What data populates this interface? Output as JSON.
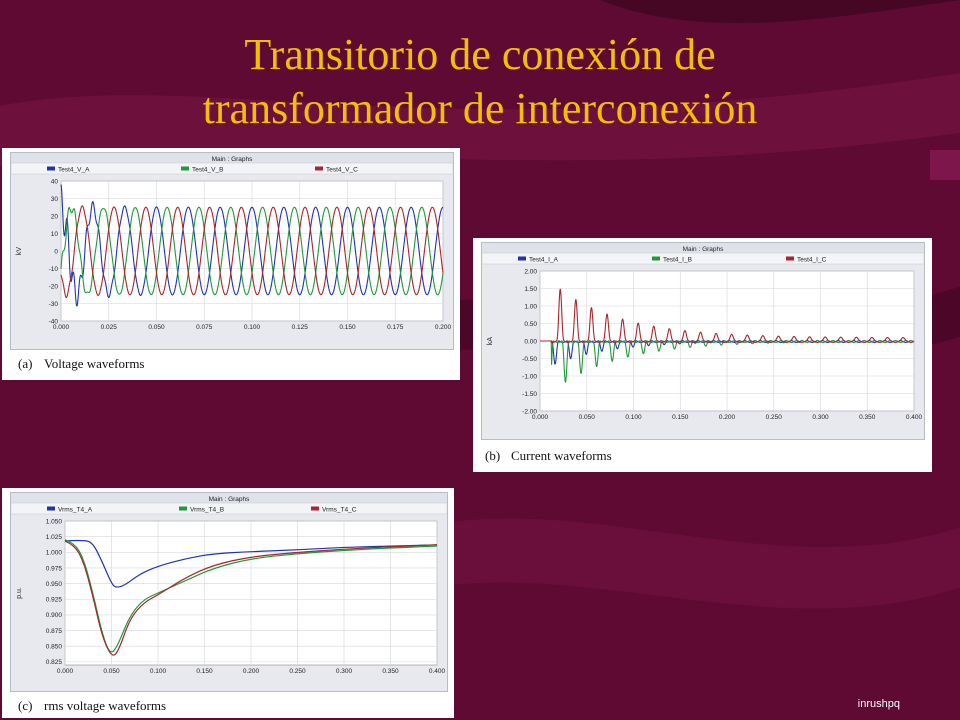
{
  "slide": {
    "title_line1": "Transitorio de conexión de",
    "title_line2": "transformador de interconexión",
    "footer": "inrushpq"
  },
  "colors": {
    "background": "#5e0a32",
    "title": "#f2c000",
    "phase_a": "#1f35b0",
    "phase_b": "#1f9a3a",
    "phase_c": "#a8262c"
  },
  "chart_data": [
    {
      "type": "line",
      "window_title": "Main : Graphs",
      "caption_letter": "(a)",
      "caption": "Voltage waveforms",
      "ylabel": "kV",
      "xlim": [
        0,
        0.2
      ],
      "ylim": [
        -40,
        40
      ],
      "x_ticks": [
        "0.000",
        "0.025",
        "0.050",
        "0.075",
        "0.100",
        "0.125",
        "0.150",
        "0.175",
        "0.200"
      ],
      "y_ticks": [
        "40",
        "30",
        "20",
        "10",
        "0",
        "-10",
        "-20",
        "-30",
        "-40"
      ],
      "frequency_hz": 60,
      "series": [
        {
          "name": "Test4_V_A",
          "color": "#1f35b0",
          "amplitude_kv": 25,
          "phase_deg": 90,
          "transient_peak_kv": 38
        },
        {
          "name": "Test4_V_B",
          "color": "#1f9a3a",
          "amplitude_kv": 25,
          "phase_deg": -30,
          "transient_peak_kv": 30
        },
        {
          "name": "Test4_V_C",
          "color": "#a8262c",
          "amplitude_kv": 25,
          "phase_deg": 210,
          "transient_peak_kv": 27
        }
      ]
    },
    {
      "type": "line",
      "window_title": "Main : Graphs",
      "caption_letter": "(b)",
      "caption": "Current waveforms",
      "ylabel": "kA",
      "xlim": [
        0,
        0.4
      ],
      "ylim": [
        -2,
        2
      ],
      "x_ticks": [
        "0.000",
        "0.050",
        "0.100",
        "0.150",
        "0.200",
        "0.250",
        "0.300",
        "0.350",
        "0.400"
      ],
      "y_ticks": [
        "2.00",
        "1.50",
        "1.00",
        "0.50",
        "0.00",
        "-0.50",
        "-1.00",
        "-1.50",
        "-2.00"
      ],
      "frequency_hz": 60,
      "series": [
        {
          "name": "Test4_I_A",
          "color": "#1f35b0",
          "initial_peak_ka": 0.7,
          "sign": -1,
          "decay_s": 0.06
        },
        {
          "name": "Test4_I_B",
          "color": "#1f9a3a",
          "initial_peak_ka": 1.45,
          "sign": -1,
          "decay_s": 0.07
        },
        {
          "name": "Test4_I_C",
          "color": "#a8262c",
          "initial_peak_ka": 1.6,
          "sign": 1,
          "decay_s": 0.07
        }
      ]
    },
    {
      "type": "line",
      "window_title": "Main : Graphs",
      "caption_letter": "(c)",
      "caption": "rms voltage waveforms",
      "ylabel": "p.u.",
      "xlim": [
        0,
        0.4
      ],
      "ylim": [
        0.82,
        1.05
      ],
      "x_ticks": [
        "0.000",
        "0.050",
        "0.100",
        "0.150",
        "0.200",
        "0.250",
        "0.300",
        "0.350",
        "0.400"
      ],
      "y_ticks": [
        "1.050",
        "1.025",
        "1.000",
        "0.975",
        "0.950",
        "0.925",
        "0.900",
        "0.875",
        "0.850",
        "0.825"
      ],
      "series": [
        {
          "name": "Vrms_T4_A",
          "color": "#1f35b0",
          "points": [
            [
              0,
              1.018
            ],
            [
              0.02,
              1.02
            ],
            [
              0.03,
              1.015
            ],
            [
              0.04,
              0.985
            ],
            [
              0.05,
              0.95
            ],
            [
              0.055,
              0.943
            ],
            [
              0.065,
              0.948
            ],
            [
              0.08,
              0.965
            ],
            [
              0.1,
              0.978
            ],
            [
              0.13,
              0.99
            ],
            [
              0.16,
              0.998
            ],
            [
              0.2,
              1.001
            ],
            [
              0.25,
              1.004
            ],
            [
              0.3,
              1.008
            ],
            [
              0.35,
              1.01
            ],
            [
              0.4,
              1.012
            ]
          ]
        },
        {
          "name": "Vrms_T4_B",
          "color": "#1f9a3a",
          "points": [
            [
              0,
              1.02
            ],
            [
              0.01,
              1.015
            ],
            [
              0.02,
              0.99
            ],
            [
              0.03,
              0.935
            ],
            [
              0.04,
              0.87
            ],
            [
              0.048,
              0.838
            ],
            [
              0.055,
              0.845
            ],
            [
              0.07,
              0.9
            ],
            [
              0.085,
              0.925
            ],
            [
              0.1,
              0.935
            ],
            [
              0.13,
              0.955
            ],
            [
              0.16,
              0.975
            ],
            [
              0.2,
              0.99
            ],
            [
              0.25,
              0.998
            ],
            [
              0.3,
              1.003
            ],
            [
              0.35,
              1.007
            ],
            [
              0.4,
              1.01
            ]
          ]
        },
        {
          "name": "Vrms_T4_C",
          "color": "#a8262c",
          "points": [
            [
              0,
              1.018
            ],
            [
              0.01,
              1.012
            ],
            [
              0.02,
              0.985
            ],
            [
              0.03,
              0.93
            ],
            [
              0.04,
              0.865
            ],
            [
              0.05,
              0.833
            ],
            [
              0.057,
              0.84
            ],
            [
              0.07,
              0.895
            ],
            [
              0.085,
              0.92
            ],
            [
              0.1,
              0.932
            ],
            [
              0.13,
              0.96
            ],
            [
              0.16,
              0.98
            ],
            [
              0.2,
              0.993
            ],
            [
              0.25,
              1.0
            ],
            [
              0.3,
              1.005
            ],
            [
              0.35,
              1.009
            ],
            [
              0.4,
              1.012
            ]
          ]
        }
      ]
    }
  ]
}
